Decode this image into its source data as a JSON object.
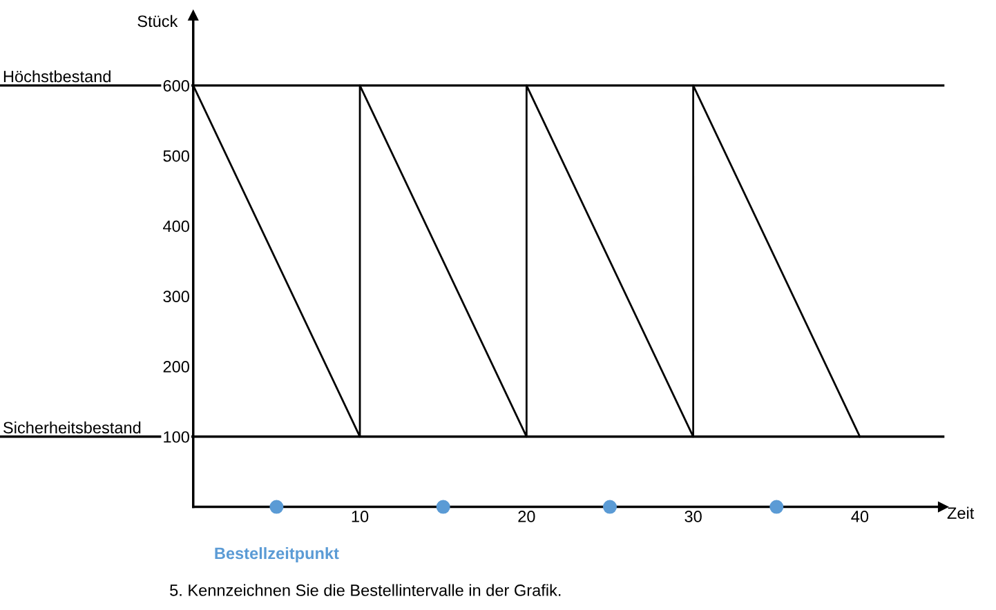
{
  "chart_data": {
    "type": "line",
    "xlabel": "Zeit",
    "ylabel": "Stück",
    "x": [
      0,
      10,
      10,
      20,
      20,
      30,
      30,
      40
    ],
    "series": [
      {
        "color": "#000000",
        "values": [
          600,
          100,
          600,
          100,
          600,
          100,
          600,
          100
        ]
      },
      {
        "type": "scatter",
        "name": "Bestellzeitpunkt",
        "color": "#5b9bd5",
        "x": [
          5,
          15,
          25,
          35
        ],
        "values": [
          0,
          0,
          0,
          0
        ]
      }
    ],
    "ref_lines": [
      {
        "axis": "y",
        "value": 600,
        "label": "Höchstbestand",
        "color": "#000000"
      },
      {
        "axis": "y",
        "value": 100,
        "label": "Sicherheitsbestand",
        "color": "#000000"
      }
    ],
    "xlim": [
      0,
      45
    ],
    "ylim": [
      0,
      700
    ],
    "xticks": [
      10,
      20,
      30,
      40
    ],
    "yticks": [
      100,
      200,
      300,
      400,
      500,
      600
    ],
    "grid": false,
    "legend": false,
    "annotations": [
      "5. Kennzeichnen Sie die Bestellintervalle in der Grafik."
    ]
  }
}
